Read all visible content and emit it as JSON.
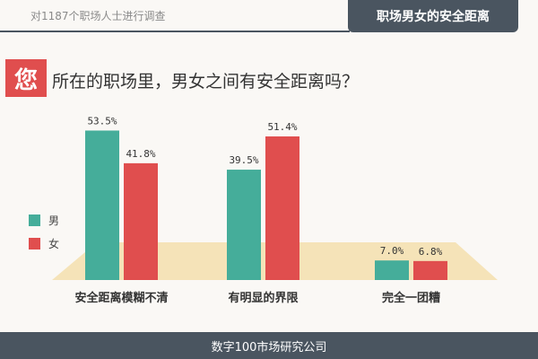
{
  "header": {
    "note": "对1187个职场人士进行调查",
    "tag": "职场男女的安全距离"
  },
  "question": {
    "badge": "您",
    "text": "所在的职场里，男女之间有安全距离吗？"
  },
  "colors": {
    "male": "#45ad9a",
    "female": "#e04e4e",
    "floor": "#f5e3b8"
  },
  "chart_data": {
    "type": "bar",
    "categories": [
      "安全距离模糊不清",
      "有明显的界限",
      "完全一团糟"
    ],
    "series": [
      {
        "name": "男",
        "values": [
          53.5,
          39.5,
          7.0
        ],
        "labels": [
          "53.5%",
          "39.5%",
          "7.0%"
        ]
      },
      {
        "name": "女",
        "values": [
          41.8,
          51.4,
          6.8
        ],
        "labels": [
          "41.8%",
          "51.4%",
          "6.8%"
        ]
      }
    ],
    "ylim": [
      0,
      60
    ],
    "legend_position": "left"
  },
  "footer": {
    "text": "数字100市场研究公司"
  }
}
